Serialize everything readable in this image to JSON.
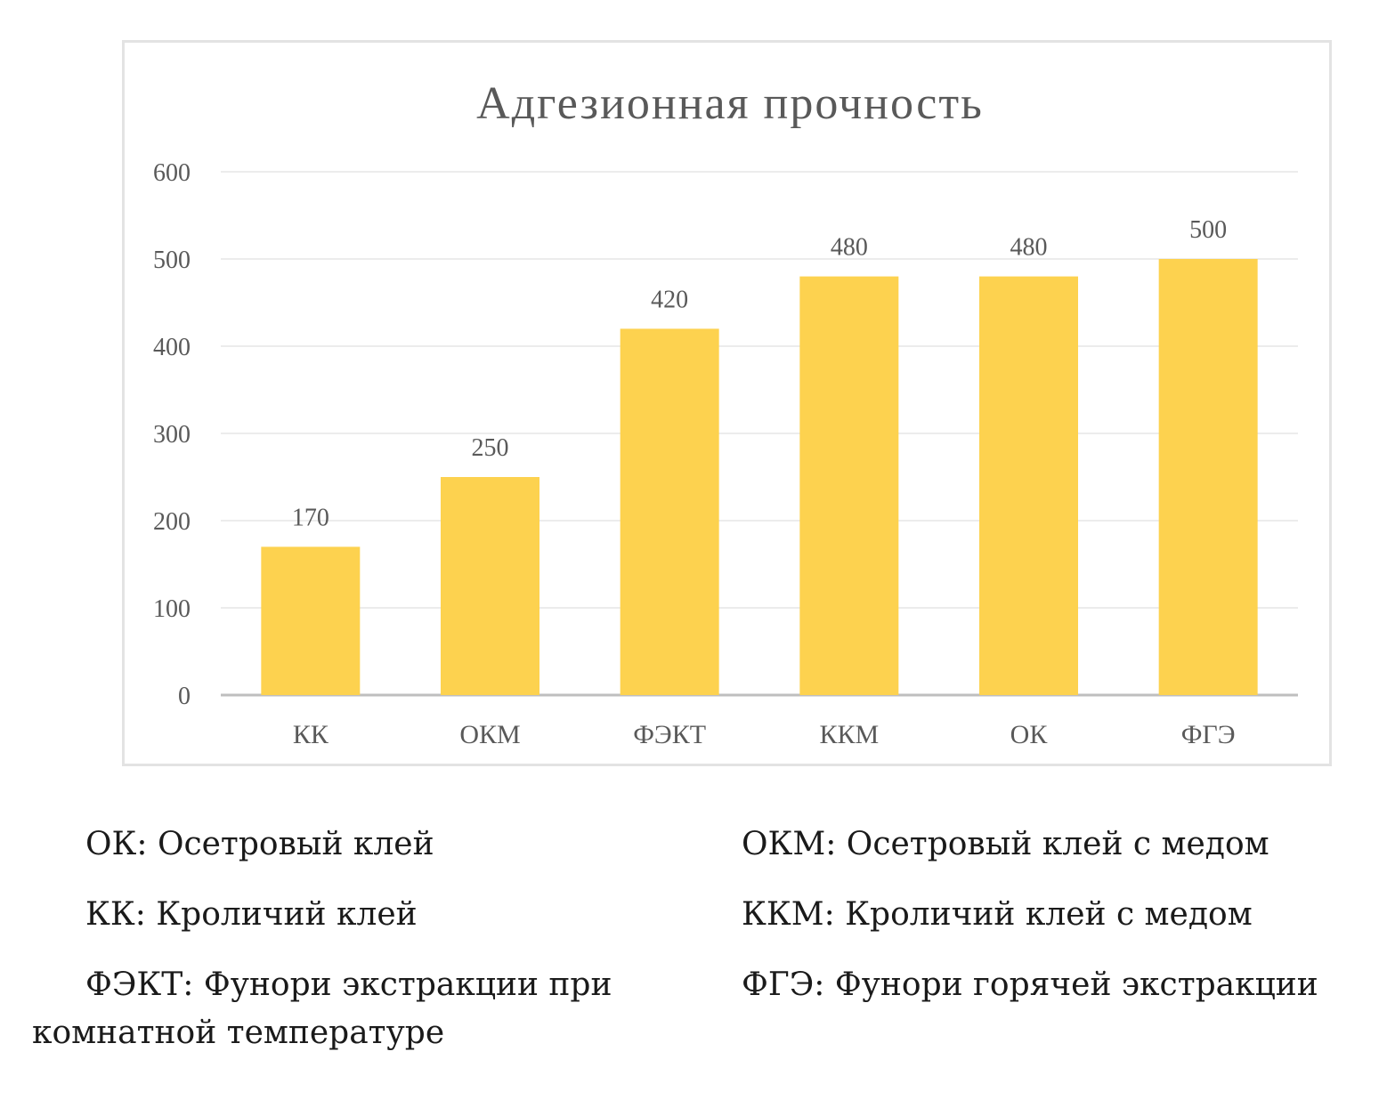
{
  "chart_data": {
    "type": "bar",
    "title": "Адгезионная прочность",
    "categories": [
      "КК",
      "ОКМ",
      "ФЭКТ",
      "ККМ",
      "ОК",
      "ФГЭ"
    ],
    "values": [
      170,
      250,
      420,
      480,
      480,
      500
    ],
    "data_labels": [
      "170",
      "250",
      "420",
      "480",
      "480",
      "500"
    ],
    "ylim": [
      0,
      600
    ],
    "yticks": [
      0,
      100,
      200,
      300,
      400,
      500,
      600
    ],
    "ytick_labels": [
      "0",
      "100",
      "200",
      "300",
      "400",
      "500",
      "600"
    ],
    "bar_color": "#fdd24f",
    "grid": true,
    "legend": "none"
  },
  "legend_notes": {
    "left": [
      "ОК: Осетровый клей",
      "КК: Кроличий клей",
      "ФЭКТ: Фунори экстракции при комнатной температуре"
    ],
    "right": [
      "ОКМ: Осетровый клей с медом",
      "ККМ: Кроличий клей с медом",
      "ФГЭ: Фунори горячей экстракции"
    ]
  }
}
